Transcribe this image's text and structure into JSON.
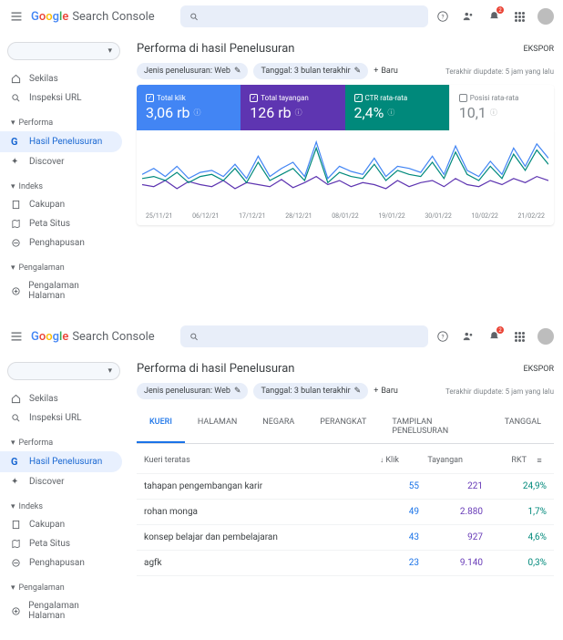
{
  "brand": "Search Console",
  "header": {
    "search_placeholder": " ",
    "notif_badge": "2"
  },
  "sidebar": {
    "overview": "Sekilas",
    "inspect": "Inspeksi URL",
    "sec_performa": "Performa",
    "hasil": "Hasil Penelusuran",
    "discover": "Discover",
    "sec_indeks": "Indeks",
    "cakupan": "Cakupan",
    "peta": "Peta Situs",
    "penghapusan": "Penghapusan",
    "sec_pengalaman": "Pengalaman",
    "pengalaman_halaman": "Pengalaman Halaman"
  },
  "dropdown": " ",
  "page_title": "Performa di hasil Penelusuran",
  "export": "EKSPOR",
  "chips": {
    "type": "Jenis penelusuran: Web",
    "date": "Tanggal: 3 bulan terakhir",
    "add": "Baru"
  },
  "updated": "Terakhir diupdate: 5 jam yang lalu",
  "metrics": [
    {
      "label": "Total klik",
      "value": "3,06 rb",
      "checked": true
    },
    {
      "label": "Total tayangan",
      "value": "126 rb",
      "checked": true
    },
    {
      "label": "CTR rata-rata",
      "value": "2,4%",
      "checked": true
    },
    {
      "label": "Posisi rata-rata",
      "value": "10,1",
      "checked": false
    }
  ],
  "chart": {
    "xlabels": [
      "25/11/21",
      "06/12/21",
      "17/12/21",
      "28/12/21",
      "08/01/22",
      "19/01/22",
      "30/01/22",
      "10/02/22",
      "21/02/22"
    ],
    "series": [
      {
        "color": "#4285f4",
        "points": [
          32,
          38,
          30,
          40,
          28,
          34,
          36,
          30,
          42,
          28,
          50,
          30,
          38,
          44,
          30,
          64,
          28,
          40,
          35,
          32,
          48,
          30,
          40,
          38,
          34,
          50,
          32,
          60,
          36,
          30,
          45,
          32,
          58,
          40,
          62,
          48
        ]
      },
      {
        "color": "#5e35b1",
        "points": [
          22,
          20,
          26,
          18,
          25,
          22,
          20,
          26,
          18,
          24,
          22,
          20,
          27,
          19,
          24,
          30,
          22,
          26,
          20,
          24,
          22,
          18,
          26,
          20,
          24,
          26,
          20,
          28,
          22,
          20,
          26,
          22,
          28,
          24,
          30,
          26
        ]
      },
      {
        "color": "#00897b",
        "points": [
          28,
          30,
          26,
          34,
          24,
          30,
          32,
          26,
          38,
          24,
          44,
          26,
          32,
          38,
          26,
          58,
          24,
          34,
          30,
          28,
          42,
          26,
          36,
          32,
          30,
          44,
          28,
          54,
          32,
          26,
          40,
          28,
          52,
          36,
          56,
          42
        ]
      }
    ]
  },
  "tabs": [
    "KUERI",
    "HALAMAN",
    "NEGARA",
    "PERANGKAT",
    "TAMPILAN PENELUSURAN",
    "TANGGAL"
  ],
  "table": {
    "header": {
      "c1": "Kueri teratas",
      "c2": "Klik",
      "c3": "Tayangan",
      "c4": "RKT"
    },
    "rows": [
      {
        "q": "tahapan pengembangan karir",
        "klik": "55",
        "tay": "221",
        "rkt": "24,9%"
      },
      {
        "q": "rohan monga",
        "klik": "49",
        "tay": "2.880",
        "rkt": "1,7%"
      },
      {
        "q": "konsep belajar dan pembelajaran",
        "klik": "43",
        "tay": "927",
        "rkt": "4,6%"
      },
      {
        "q": "agfk",
        "klik": "23",
        "tay": "9.140",
        "rkt": "0,3%"
      }
    ]
  }
}
